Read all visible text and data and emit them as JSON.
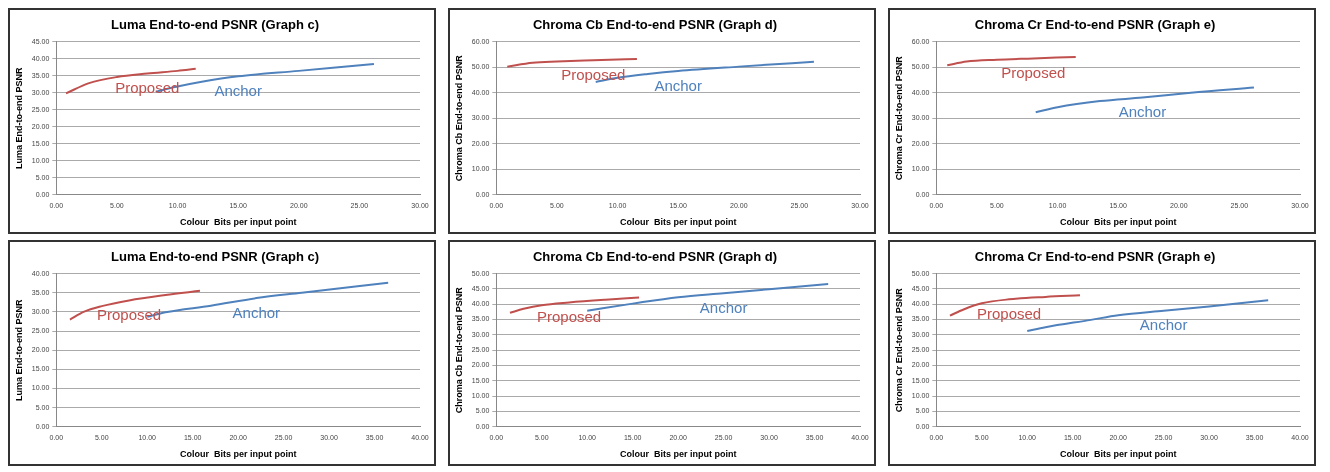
{
  "chart_data": [
    {
      "type": "line",
      "title": "Luma End-to-end PSNR (Graph c)",
      "xlabel": "Colour  Bits per input point",
      "ylabel": "Luma End-to-end PSNR",
      "grid": "y",
      "legend": false,
      "marker": "none",
      "line_style": "solid",
      "xlim": [
        0,
        30
      ],
      "xticks": [
        {
          "value": 0,
          "label": "0.00"
        },
        {
          "value": 5,
          "label": "5.00"
        },
        {
          "value": 10,
          "label": "10.00"
        },
        {
          "value": 15,
          "label": "15.00"
        },
        {
          "value": 20,
          "label": "20.00"
        },
        {
          "value": 25,
          "label": "25.00"
        },
        {
          "value": 30,
          "label": "30.00"
        }
      ],
      "ylim": [
        0,
        45
      ],
      "yticks": [
        {
          "value": 0,
          "label": "0.00"
        },
        {
          "value": 5,
          "label": "5.00"
        },
        {
          "value": 10,
          "label": "10.00"
        },
        {
          "value": 15,
          "label": "15.00"
        },
        {
          "value": 20,
          "label": "20.00"
        },
        {
          "value": 25,
          "label": "25.00"
        },
        {
          "value": 30,
          "label": "30.00"
        },
        {
          "value": 35,
          "label": "35.00"
        },
        {
          "value": 40,
          "label": "40.00"
        },
        {
          "value": 45,
          "label": "45.00"
        }
      ],
      "series": [
        {
          "name": "Proposed",
          "color": "#c0504d",
          "x": [
            0.8,
            2.7,
            5.0,
            7.5,
            10.0,
            11.5
          ],
          "values": [
            29.8,
            32.8,
            34.6,
            35.6,
            36.4,
            37.0
          ]
        },
        {
          "name": "Anchor",
          "color": "#4f81bd",
          "x": [
            8.2,
            10.0,
            12.0,
            15.0,
            20.0,
            26.2
          ],
          "values": [
            30.3,
            31.8,
            33.2,
            34.8,
            36.4,
            38.4
          ]
        }
      ]
    },
    {
      "type": "line",
      "title": "Chroma Cb End-to-end PSNR (Graph d)",
      "xlabel": "Colour  Bits per input point",
      "ylabel": "Chroma Cb End-to-end PSNR",
      "grid": "y",
      "legend": false,
      "marker": "none",
      "line_style": "solid",
      "xlim": [
        0,
        30
      ],
      "xticks": [
        {
          "value": 0,
          "label": "0.00"
        },
        {
          "value": 5,
          "label": "5.00"
        },
        {
          "value": 10,
          "label": "10.00"
        },
        {
          "value": 15,
          "label": "15.00"
        },
        {
          "value": 20,
          "label": "20.00"
        },
        {
          "value": 25,
          "label": "25.00"
        },
        {
          "value": 30,
          "label": "30.00"
        }
      ],
      "ylim": [
        0,
        60
      ],
      "yticks": [
        {
          "value": 0,
          "label": "0.00"
        },
        {
          "value": 10,
          "label": "10.00"
        },
        {
          "value": 20,
          "label": "20.00"
        },
        {
          "value": 30,
          "label": "30.00"
        },
        {
          "value": 40,
          "label": "40.00"
        },
        {
          "value": 50,
          "label": "50.00"
        },
        {
          "value": 60,
          "label": "60.00"
        }
      ],
      "series": [
        {
          "name": "Proposed",
          "color": "#c0504d",
          "x": [
            0.9,
            3.0,
            5.0,
            8.0,
            11.6
          ],
          "values": [
            50.2,
            51.7,
            52.2,
            52.7,
            53.2
          ]
        },
        {
          "name": "Anchor",
          "color": "#4f81bd",
          "x": [
            8.2,
            10.0,
            12.5,
            15.0,
            20.0,
            26.2
          ],
          "values": [
            44.2,
            45.8,
            47.3,
            48.5,
            50.2,
            52.1
          ]
        }
      ]
    },
    {
      "type": "line",
      "title": "Chroma Cr End-to-end PSNR (Graph e)",
      "xlabel": "Colour  Bits per input point",
      "ylabel": "Chroma Cr End-to-end PSNR",
      "grid": "y",
      "legend": false,
      "marker": "none",
      "line_style": "solid",
      "xlim": [
        0,
        30
      ],
      "xticks": [
        {
          "value": 0,
          "label": "0.00"
        },
        {
          "value": 5,
          "label": "5.00"
        },
        {
          "value": 10,
          "label": "10.00"
        },
        {
          "value": 15,
          "label": "15.00"
        },
        {
          "value": 20,
          "label": "20.00"
        },
        {
          "value": 25,
          "label": "25.00"
        },
        {
          "value": 30,
          "label": "30.00"
        }
      ],
      "ylim": [
        0,
        60
      ],
      "yticks": [
        {
          "value": 0,
          "label": "0.00"
        },
        {
          "value": 10,
          "label": "10.00"
        },
        {
          "value": 20,
          "label": "20.00"
        },
        {
          "value": 30,
          "label": "30.00"
        },
        {
          "value": 40,
          "label": "40.00"
        },
        {
          "value": 50,
          "label": "50.00"
        },
        {
          "value": 60,
          "label": "60.00"
        }
      ],
      "series": [
        {
          "name": "Proposed",
          "color": "#c0504d",
          "x": [
            0.9,
            2.5,
            5.0,
            8.0,
            11.5
          ],
          "values": [
            50.7,
            52.2,
            52.9,
            53.4,
            54.0
          ]
        },
        {
          "name": "Anchor",
          "color": "#4f81bd",
          "x": [
            8.2,
            10.0,
            13.5,
            17.0,
            21.0,
            26.2
          ],
          "values": [
            32.3,
            34.3,
            36.7,
            38.1,
            40.0,
            42.0
          ]
        }
      ]
    },
    {
      "type": "line",
      "title": "Luma End-to-end PSNR (Graph c)",
      "xlabel": "Colour  Bits per input point",
      "ylabel": "Luma End-to-end PSNR",
      "grid": "y",
      "legend": false,
      "marker": "none",
      "line_style": "solid",
      "xlim": [
        0,
        40
      ],
      "xticks": [
        {
          "value": 0,
          "label": "0.00"
        },
        {
          "value": 5,
          "label": "5.00"
        },
        {
          "value": 10,
          "label": "10.00"
        },
        {
          "value": 15,
          "label": "15.00"
        },
        {
          "value": 20,
          "label": "20.00"
        },
        {
          "value": 25,
          "label": "25.00"
        },
        {
          "value": 30,
          "label": "30.00"
        },
        {
          "value": 35,
          "label": "35.00"
        },
        {
          "value": 40,
          "label": "40.00"
        }
      ],
      "ylim": [
        0,
        40
      ],
      "yticks": [
        {
          "value": 0,
          "label": "0.00"
        },
        {
          "value": 5,
          "label": "5.00"
        },
        {
          "value": 10,
          "label": "10.00"
        },
        {
          "value": 15,
          "label": "15.00"
        },
        {
          "value": 20,
          "label": "20.00"
        },
        {
          "value": 25,
          "label": "25.00"
        },
        {
          "value": 30,
          "label": "30.00"
        },
        {
          "value": 35,
          "label": "35.00"
        },
        {
          "value": 40,
          "label": "40.00"
        }
      ],
      "series": [
        {
          "name": "Proposed",
          "color": "#c0504d",
          "x": [
            1.5,
            3.0,
            5.0,
            8.0,
            12.0,
            15.8
          ],
          "values": [
            28.0,
            30.0,
            31.5,
            33.0,
            34.4,
            35.5
          ]
        },
        {
          "name": "Anchor",
          "color": "#4f81bd",
          "x": [
            10.0,
            12.0,
            17.0,
            22.0,
            27.0,
            36.5
          ],
          "values": [
            28.7,
            29.9,
            31.6,
            33.6,
            35.0,
            37.6
          ]
        }
      ]
    },
    {
      "type": "line",
      "title": "Chroma Cb End-to-end PSNR (Graph d)",
      "xlabel": "Colour  Bits per input point",
      "ylabel": "Chroma Cb End-to-end PSNR",
      "grid": "y",
      "legend": false,
      "marker": "none",
      "line_style": "solid",
      "xlim": [
        0,
        40
      ],
      "xticks": [
        {
          "value": 0,
          "label": "0.00"
        },
        {
          "value": 5,
          "label": "5.00"
        },
        {
          "value": 10,
          "label": "10.00"
        },
        {
          "value": 15,
          "label": "15.00"
        },
        {
          "value": 20,
          "label": "20.00"
        },
        {
          "value": 25,
          "label": "25.00"
        },
        {
          "value": 30,
          "label": "30.00"
        },
        {
          "value": 35,
          "label": "35.00"
        },
        {
          "value": 40,
          "label": "40.00"
        }
      ],
      "ylim": [
        0,
        50
      ],
      "yticks": [
        {
          "value": 0,
          "label": "0.00"
        },
        {
          "value": 5,
          "label": "5.00"
        },
        {
          "value": 10,
          "label": "10.00"
        },
        {
          "value": 15,
          "label": "15.00"
        },
        {
          "value": 20,
          "label": "20.00"
        },
        {
          "value": 25,
          "label": "25.00"
        },
        {
          "value": 30,
          "label": "30.00"
        },
        {
          "value": 35,
          "label": "35.00"
        },
        {
          "value": 40,
          "label": "40.00"
        },
        {
          "value": 45,
          "label": "45.00"
        },
        {
          "value": 50,
          "label": "50.00"
        }
      ],
      "series": [
        {
          "name": "Proposed",
          "color": "#c0504d",
          "x": [
            1.5,
            3.0,
            5.0,
            8.0,
            12.0,
            15.7
          ],
          "values": [
            37.2,
            38.5,
            39.7,
            40.6,
            41.5,
            42.2
          ]
        },
        {
          "name": "Anchor",
          "color": "#4f81bd",
          "x": [
            10.0,
            15.0,
            20.0,
            25.0,
            30.0,
            36.5
          ],
          "values": [
            37.9,
            40.2,
            42.3,
            43.6,
            44.9,
            46.6
          ]
        }
      ]
    },
    {
      "type": "line",
      "title": "Chroma Cr End-to-end PSNR (Graph e)",
      "xlabel": "Colour  Bits per input point",
      "ylabel": "Chroma Cr End-to-end PSNR",
      "grid": "y",
      "legend": false,
      "marker": "none",
      "line_style": "solid",
      "xlim": [
        0,
        40
      ],
      "xticks": [
        {
          "value": 0,
          "label": "0.00"
        },
        {
          "value": 5,
          "label": "5.00"
        },
        {
          "value": 10,
          "label": "10.00"
        },
        {
          "value": 15,
          "label": "15.00"
        },
        {
          "value": 20,
          "label": "20.00"
        },
        {
          "value": 25,
          "label": "25.00"
        },
        {
          "value": 30,
          "label": "30.00"
        },
        {
          "value": 35,
          "label": "35.00"
        },
        {
          "value": 40,
          "label": "40.00"
        }
      ],
      "ylim": [
        0,
        50
      ],
      "yticks": [
        {
          "value": 0,
          "label": "0.00"
        },
        {
          "value": 5,
          "label": "5.00"
        },
        {
          "value": 10,
          "label": "10.00"
        },
        {
          "value": 15,
          "label": "15.00"
        },
        {
          "value": 20,
          "label": "20.00"
        },
        {
          "value": 25,
          "label": "25.00"
        },
        {
          "value": 30,
          "label": "30.00"
        },
        {
          "value": 35,
          "label": "35.00"
        },
        {
          "value": 40,
          "label": "40.00"
        },
        {
          "value": 45,
          "label": "45.00"
        },
        {
          "value": 50,
          "label": "50.00"
        }
      ],
      "series": [
        {
          "name": "Proposed",
          "color": "#c0504d",
          "x": [
            1.5,
            3.0,
            5.0,
            8.0,
            12.0,
            15.8
          ],
          "values": [
            36.3,
            38.3,
            40.3,
            41.6,
            42.4,
            42.9
          ]
        },
        {
          "name": "Anchor",
          "color": "#4f81bd",
          "x": [
            10.0,
            12.0,
            17.0,
            20.0,
            25.0,
            30.0,
            36.5
          ],
          "values": [
            31.3,
            32.5,
            34.9,
            36.4,
            37.9,
            39.3,
            41.3
          ]
        }
      ]
    }
  ]
}
